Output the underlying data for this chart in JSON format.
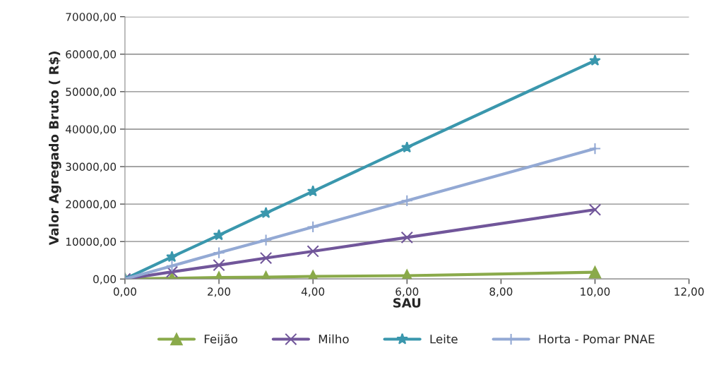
{
  "chart_data": {
    "type": "line",
    "xlabel": "SAU",
    "ylabel": "Valor Agregado Bruto ( R$)",
    "x": [
      0,
      1,
      2,
      3,
      4,
      6,
      10
    ],
    "series": [
      {
        "name": "Feijão",
        "color": "#8aaa4a",
        "marker": "triangle",
        "values": [
          0,
          200,
          400,
          500,
          700,
          900,
          1800
        ]
      },
      {
        "name": "Milho",
        "color": "#71569a",
        "marker": "cross",
        "values": [
          0,
          1900,
          3700,
          5600,
          7400,
          11100,
          18500
        ]
      },
      {
        "name": "Leite",
        "color": "#3a97ad",
        "marker": "star",
        "values": [
          0,
          5900,
          11700,
          17600,
          23400,
          35100,
          58300
        ]
      },
      {
        "name": "Horta - Pomar PNAE",
        "color": "#93a9d4",
        "marker": "plus",
        "values": [
          0,
          3500,
          7000,
          10400,
          13900,
          20900,
          34800
        ]
      }
    ],
    "xlim": [
      0,
      12
    ],
    "ylim": [
      0,
      70000
    ],
    "xticks": [
      {
        "value": 0,
        "label": "0,00"
      },
      {
        "value": 2,
        "label": "2,00"
      },
      {
        "value": 4,
        "label": "4,00"
      },
      {
        "value": 6,
        "label": "6,00"
      },
      {
        "value": 8,
        "label": "8,00"
      },
      {
        "value": 10,
        "label": "10,00"
      },
      {
        "value": 12,
        "label": "12,00"
      }
    ],
    "yticks": [
      {
        "value": 0,
        "label": "0,00"
      },
      {
        "value": 10000,
        "label": "10000,00"
      },
      {
        "value": 20000,
        "label": "20000,00"
      },
      {
        "value": 30000,
        "label": "30000,00"
      },
      {
        "value": 40000,
        "label": "40000,00"
      },
      {
        "value": 50000,
        "label": "50000,00"
      },
      {
        "value": 60000,
        "label": "60000,00"
      },
      {
        "value": 70000,
        "label": "70000,00"
      }
    ],
    "grid": "y",
    "legend": "bottom",
    "line_style": "solid"
  }
}
